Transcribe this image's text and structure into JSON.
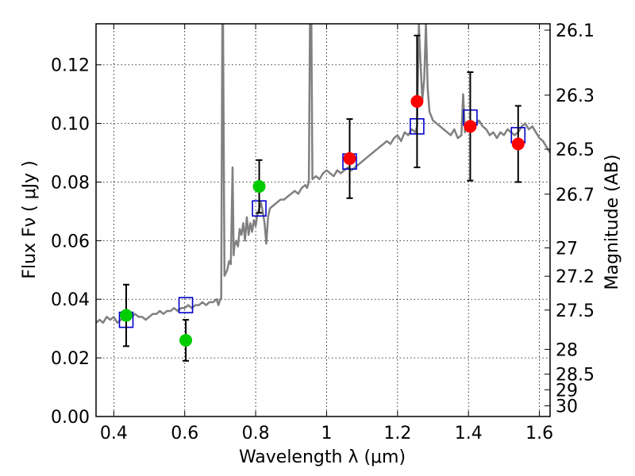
{
  "chart_data": {
    "type": "scatter",
    "xlabel": "Wavelength  λ (μm)",
    "ylabel": "Flux  Fν  ( μJy )",
    "y2label": "Magnitude (AB)",
    "xlim": [
      0.35,
      1.63
    ],
    "ylim": [
      0.0,
      0.134
    ],
    "grid": true,
    "x_ticks": [
      {
        "value": 0.4,
        "label": "0.4"
      },
      {
        "value": 0.6,
        "label": "0.6"
      },
      {
        "value": 0.8,
        "label": "0.8"
      },
      {
        "value": 1.0,
        "label": "1"
      },
      {
        "value": 1.2,
        "label": "1.2"
      },
      {
        "value": 1.4,
        "label": "1.4"
      },
      {
        "value": 1.6,
        "label": "1.6"
      }
    ],
    "y_ticks": [
      {
        "value": 0.0,
        "label": "0.00"
      },
      {
        "value": 0.02,
        "label": "0.02"
      },
      {
        "value": 0.04,
        "label": "0.04"
      },
      {
        "value": 0.06,
        "label": "0.06"
      },
      {
        "value": 0.08,
        "label": "0.08"
      },
      {
        "value": 0.1,
        "label": "0.10"
      },
      {
        "value": 0.12,
        "label": "0.12"
      }
    ],
    "mag_ticks": [
      {
        "value": 26.1,
        "label": "26.1"
      },
      {
        "value": 26.3,
        "label": "26.3"
      },
      {
        "value": 26.5,
        "label": "26.5"
      },
      {
        "value": 26.7,
        "label": "26.7"
      },
      {
        "value": 27.0,
        "label": "27"
      },
      {
        "value": 27.2,
        "label": "27.2"
      },
      {
        "value": 27.5,
        "label": "27.5"
      },
      {
        "value": 28.0,
        "label": "28"
      },
      {
        "value": 28.5,
        "label": "28.5"
      },
      {
        "value": 29.0,
        "label": "29"
      },
      {
        "value": 30.0,
        "label": "30"
      }
    ],
    "series": [
      {
        "name": "model spectrum",
        "kind": "line",
        "color": "#808080",
        "points": [
          [
            0.35,
            0.032
          ],
          [
            0.36,
            0.033
          ],
          [
            0.37,
            0.032
          ],
          [
            0.38,
            0.034
          ],
          [
            0.39,
            0.033
          ],
          [
            0.4,
            0.034
          ],
          [
            0.41,
            0.032
          ],
          [
            0.42,
            0.033
          ],
          [
            0.43,
            0.034
          ],
          [
            0.44,
            0.035
          ],
          [
            0.45,
            0.034
          ],
          [
            0.46,
            0.035
          ],
          [
            0.47,
            0.034
          ],
          [
            0.48,
            0.034
          ],
          [
            0.49,
            0.033
          ],
          [
            0.5,
            0.034
          ],
          [
            0.51,
            0.035
          ],
          [
            0.52,
            0.035
          ],
          [
            0.53,
            0.036
          ],
          [
            0.54,
            0.035
          ],
          [
            0.55,
            0.036
          ],
          [
            0.56,
            0.036
          ],
          [
            0.57,
            0.037
          ],
          [
            0.58,
            0.036
          ],
          [
            0.59,
            0.037
          ],
          [
            0.6,
            0.037
          ],
          [
            0.61,
            0.038
          ],
          [
            0.62,
            0.037
          ],
          [
            0.63,
            0.038
          ],
          [
            0.64,
            0.038
          ],
          [
            0.65,
            0.039
          ],
          [
            0.66,
            0.038
          ],
          [
            0.67,
            0.039
          ],
          [
            0.68,
            0.039
          ],
          [
            0.69,
            0.04
          ],
          [
            0.695,
            0.038
          ],
          [
            0.7,
            0.04
          ],
          [
            0.703,
            0.04
          ],
          [
            0.706,
            0.134
          ],
          [
            0.708,
            0.134
          ],
          [
            0.712,
            0.048
          ],
          [
            0.72,
            0.05
          ],
          [
            0.725,
            0.053
          ],
          [
            0.73,
            0.052
          ],
          [
            0.735,
            0.085
          ],
          [
            0.738,
            0.055
          ],
          [
            0.74,
            0.058
          ],
          [
            0.745,
            0.06
          ],
          [
            0.75,
            0.058
          ],
          [
            0.755,
            0.064
          ],
          [
            0.76,
            0.062
          ],
          [
            0.765,
            0.066
          ],
          [
            0.77,
            0.06
          ],
          [
            0.775,
            0.068
          ],
          [
            0.78,
            0.062
          ],
          [
            0.785,
            0.066
          ],
          [
            0.79,
            0.063
          ],
          [
            0.795,
            0.067
          ],
          [
            0.8,
            0.065
          ],
          [
            0.805,
            0.069
          ],
          [
            0.81,
            0.071
          ],
          [
            0.815,
            0.073
          ],
          [
            0.82,
            0.07
          ],
          [
            0.825,
            0.066
          ],
          [
            0.83,
            0.059
          ],
          [
            0.835,
            0.068
          ],
          [
            0.84,
            0.071
          ],
          [
            0.85,
            0.072
          ],
          [
            0.86,
            0.073
          ],
          [
            0.87,
            0.074
          ],
          [
            0.88,
            0.074
          ],
          [
            0.89,
            0.075
          ],
          [
            0.9,
            0.076
          ],
          [
            0.91,
            0.077
          ],
          [
            0.92,
            0.076
          ],
          [
            0.93,
            0.078
          ],
          [
            0.94,
            0.079
          ],
          [
            0.945,
            0.078
          ],
          [
            0.95,
            0.08
          ],
          [
            0.953,
            0.134
          ],
          [
            0.957,
            0.134
          ],
          [
            0.96,
            0.081
          ],
          [
            0.97,
            0.082
          ],
          [
            0.98,
            0.081
          ],
          [
            0.99,
            0.083
          ],
          [
            1.0,
            0.084
          ],
          [
            1.01,
            0.083
          ],
          [
            1.02,
            0.082
          ],
          [
            1.03,
            0.084
          ],
          [
            1.04,
            0.083
          ],
          [
            1.05,
            0.084
          ],
          [
            1.06,
            0.085
          ],
          [
            1.07,
            0.084
          ],
          [
            1.08,
            0.085
          ],
          [
            1.09,
            0.086
          ],
          [
            1.1,
            0.087
          ],
          [
            1.11,
            0.088
          ],
          [
            1.12,
            0.089
          ],
          [
            1.13,
            0.09
          ],
          [
            1.14,
            0.091
          ],
          [
            1.15,
            0.092
          ],
          [
            1.16,
            0.093
          ],
          [
            1.17,
            0.094
          ],
          [
            1.18,
            0.093
          ],
          [
            1.19,
            0.095
          ],
          [
            1.2,
            0.096
          ],
          [
            1.21,
            0.094
          ],
          [
            1.22,
            0.097
          ],
          [
            1.23,
            0.096
          ],
          [
            1.24,
            0.098
          ],
          [
            1.25,
            0.097
          ],
          [
            1.255,
            0.099
          ],
          [
            1.26,
            0.134
          ],
          [
            1.265,
            0.12
          ],
          [
            1.27,
            0.108
          ],
          [
            1.275,
            0.115
          ],
          [
            1.28,
            0.134
          ],
          [
            1.285,
            0.112
          ],
          [
            1.29,
            0.104
          ],
          [
            1.3,
            0.101
          ],
          [
            1.31,
            0.1
          ],
          [
            1.32,
            0.099
          ],
          [
            1.33,
            0.098
          ],
          [
            1.34,
            0.097
          ],
          [
            1.35,
            0.096
          ],
          [
            1.36,
            0.098
          ],
          [
            1.37,
            0.095
          ],
          [
            1.38,
            0.096
          ],
          [
            1.385,
            0.11
          ],
          [
            1.39,
            0.097
          ],
          [
            1.4,
            0.099
          ],
          [
            1.41,
            0.098
          ],
          [
            1.42,
            0.1
          ],
          [
            1.43,
            0.101
          ],
          [
            1.44,
            0.099
          ],
          [
            1.45,
            0.098
          ],
          [
            1.46,
            0.096
          ],
          [
            1.47,
            0.097
          ],
          [
            1.48,
            0.095
          ],
          [
            1.49,
            0.097
          ],
          [
            1.5,
            0.096
          ],
          [
            1.51,
            0.098
          ],
          [
            1.52,
            0.097
          ],
          [
            1.53,
            0.096
          ],
          [
            1.54,
            0.097
          ],
          [
            1.55,
            0.099
          ],
          [
            1.56,
            0.1
          ],
          [
            1.57,
            0.098
          ],
          [
            1.58,
            0.099
          ],
          [
            1.59,
            0.097
          ],
          [
            1.6,
            0.095
          ],
          [
            1.61,
            0.094
          ],
          [
            1.62,
            0.092
          ],
          [
            1.63,
            0.09
          ]
        ]
      },
      {
        "name": "model band flux",
        "kind": "square-markers",
        "color": "#0000cc",
        "points": [
          [
            0.435,
            0.033
          ],
          [
            0.603,
            0.038
          ],
          [
            0.81,
            0.071
          ],
          [
            1.065,
            0.087
          ],
          [
            1.255,
            0.099
          ],
          [
            1.405,
            0.102
          ],
          [
            1.54,
            0.096
          ]
        ]
      },
      {
        "name": "observed flux (optical)",
        "kind": "circle-markers",
        "color": "#00cc00",
        "points": [
          [
            0.435,
            0.0345
          ],
          [
            0.603,
            0.026
          ],
          [
            0.81,
            0.0785
          ]
        ],
        "errors": [
          0.0105,
          0.007,
          0.009
        ]
      },
      {
        "name": "observed flux (near-IR)",
        "kind": "circle-markers",
        "color": "#ff0000",
        "points": [
          [
            1.065,
            0.088
          ],
          [
            1.255,
            0.1075
          ],
          [
            1.405,
            0.099
          ],
          [
            1.54,
            0.093
          ]
        ],
        "errors": [
          0.0135,
          0.0225,
          0.0185,
          0.013
        ]
      }
    ]
  }
}
